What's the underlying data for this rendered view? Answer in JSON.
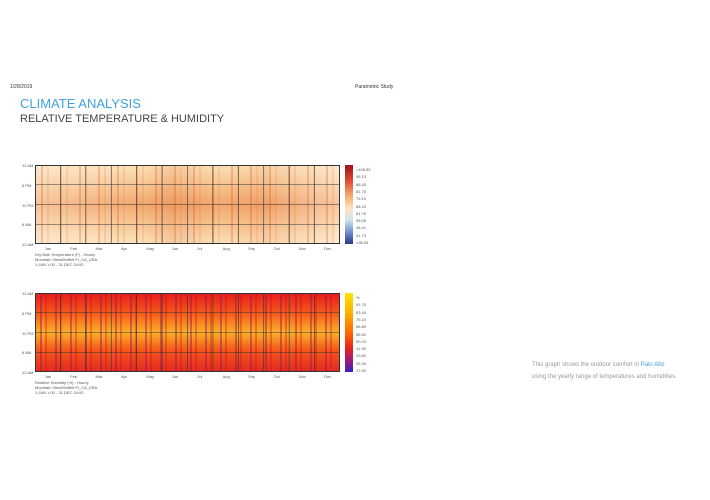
{
  "header": {
    "date": "1/28/2019",
    "study": "Parametric Study"
  },
  "title": "CLIMATE ANALYSIS",
  "subtitle": "RELATIVE TEMPERATURE & HUMIDITY",
  "charts": [
    {
      "y_labels": [
        "12 AM",
        "6 PM",
        "12 PM",
        "6 AM",
        "12 AM"
      ],
      "x_labels": [
        "Jan",
        "Feb",
        "Mar",
        "Apr",
        "May",
        "Jun",
        "Jul",
        "Aug",
        "Sep",
        "Oct",
        "Nov",
        "Dec"
      ],
      "legend_labels": [
        ">105.80",
        "95.13",
        "88.45",
        "81.78",
        "75.10",
        "68.43",
        "61.76",
        "55.08",
        "48.41",
        "41.73",
        "<35.06"
      ],
      "caption": [
        "Dry Bulb Temperature (F) - Hourly",
        "Mountain View/Moffett Fi_CA_USA",
        "1 JAN 1:00 - 31 DEC 24:00"
      ]
    },
    {
      "y_labels": [
        "12 AM",
        "6 PM",
        "12 PM",
        "6 AM",
        "12 AM"
      ],
      "x_labels": [
        "Jan",
        "Feb",
        "Mar",
        "Apr",
        "May",
        "Jun",
        "Jul",
        "Aug",
        "Sep",
        "Oct",
        "Nov",
        "Dec"
      ],
      "legend_labels": [
        "%",
        "91.70",
        "83.40",
        "75.10",
        "66.80",
        "58.50",
        "50.20",
        "41.90",
        "33.60",
        "25.30",
        "17.00"
      ],
      "caption": [
        "Relative Humidity (%) - Hourly",
        "Mountain View/Moffett Fi_CA_USA",
        "1 JAN 1:00 - 31 DEC 24:00"
      ]
    }
  ],
  "note": {
    "before": "This graph shows the outdoor comfort in",
    "link": "Palo Alto",
    "after": "using the yearly range of temperatures and humidities."
  }
}
